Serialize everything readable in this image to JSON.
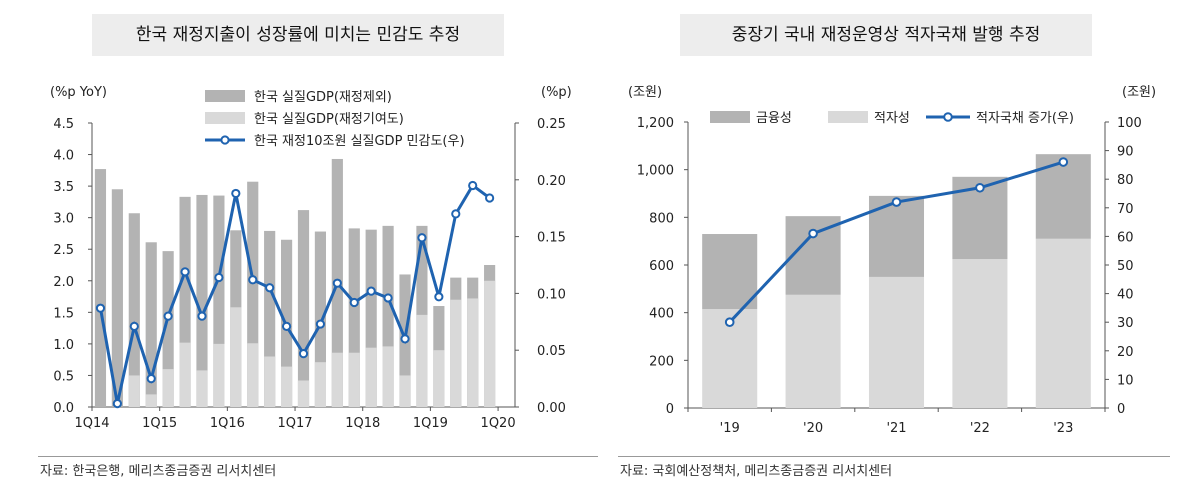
{
  "charts": [
    {
      "title": "한국 재정지출이 성장률에 미치는 민감도 추정",
      "source": "자료: 한국은행, 메리츠종금증권 리서치센터",
      "chart_data": {
        "type": "bar",
        "left_unit": "(%p YoY)",
        "right_unit": "(%p)",
        "ylim_left": [
          0,
          4.5
        ],
        "ylim_right": [
          0,
          0.25
        ],
        "left_ticks": [
          "0.0",
          "0.5",
          "1.0",
          "1.5",
          "2.0",
          "2.5",
          "3.0",
          "3.5",
          "4.0",
          "4.5"
        ],
        "right_ticks": [
          "0.00",
          "0.05",
          "0.10",
          "0.15",
          "0.20",
          "0.25"
        ],
        "x_tick_labels": [
          "1Q14",
          "1Q15",
          "1Q16",
          "1Q17",
          "1Q18",
          "1Q19",
          "1Q20"
        ],
        "categories": [
          "1Q14",
          "2Q14",
          "3Q14",
          "4Q14",
          "1Q15",
          "2Q15",
          "3Q15",
          "4Q15",
          "1Q16",
          "2Q16",
          "3Q16",
          "4Q16",
          "1Q17",
          "2Q17",
          "3Q17",
          "4Q17",
          "1Q18",
          "2Q18",
          "3Q18",
          "4Q18",
          "1Q19",
          "2Q19",
          "3Q19",
          "4Q19",
          "1Q20"
        ],
        "legend_position": "top-right",
        "series": [
          {
            "name": "한국 실질GDP(재정제외)",
            "kind": "bar",
            "axis": "left",
            "color": "#b3b3b3",
            "values": [
              3.77,
              3.45,
              3.07,
              2.61,
              2.47,
              3.33,
              3.36,
              3.35,
              2.8,
              3.57,
              2.79,
              2.65,
              3.12,
              2.78,
              3.93,
              2.83,
              2.81,
              2.87,
              2.1,
              2.87,
              1.6,
              2.05,
              2.05,
              2.25,
              null
            ]
          },
          {
            "name": "한국 실질GDP(재정기여도)",
            "kind": "bar",
            "axis": "left",
            "color": "#d9d9d9",
            "values": [
              null,
              null,
              0.5,
              0.2,
              0.6,
              1.02,
              0.58,
              1.0,
              1.58,
              1.01,
              0.8,
              0.64,
              0.42,
              0.71,
              0.86,
              0.86,
              0.94,
              0.96,
              0.5,
              1.46,
              0.9,
              1.7,
              1.72,
              2.0,
              null
            ]
          },
          {
            "name": "한국 재정10조원 실질GDP 민감도(우)",
            "kind": "line",
            "axis": "right",
            "color": "#1f63b0",
            "values": [
              0.087,
              0.003,
              0.071,
              0.025,
              0.08,
              0.119,
              0.08,
              0.114,
              0.188,
              0.112,
              0.105,
              0.071,
              0.047,
              0.073,
              0.109,
              0.092,
              0.102,
              0.096,
              0.06,
              0.149,
              0.097,
              0.17,
              0.195,
              0.184,
              null
            ]
          }
        ]
      }
    },
    {
      "title": "중장기 국내 재정운영상 적자국채 발행 추정",
      "source": "자료: 국회예산정책처, 메리츠종금증권 리서치센터",
      "chart_data": {
        "type": "bar",
        "left_unit": "(조원)",
        "right_unit": "(조원)",
        "ylim_left": [
          0,
          1200
        ],
        "ylim_right": [
          0,
          100
        ],
        "left_ticks": [
          "0",
          "200",
          "400",
          "600",
          "800",
          "1,000",
          "1,200"
        ],
        "right_ticks": [
          "0",
          "10",
          "20",
          "30",
          "40",
          "50",
          "60",
          "70",
          "80",
          "90",
          "100"
        ],
        "categories": [
          "'19",
          "'20",
          "'21",
          "'22",
          "'23"
        ],
        "legend_position": "top",
        "series": [
          {
            "name": "금융성",
            "kind": "bar",
            "axis": "left",
            "color": "#b3b3b3",
            "values": [
              315,
              330,
              340,
              345,
              355
            ]
          },
          {
            "name": "적자성",
            "kind": "bar",
            "axis": "left",
            "color": "#d9d9d9",
            "values": [
              415,
              475,
              550,
              625,
              710
            ]
          },
          {
            "name": "적자국채 증가(우)",
            "kind": "line",
            "axis": "right",
            "color": "#1f63b0",
            "values": [
              30.0,
              61.0,
              72.0,
              77.0,
              86.0
            ]
          }
        ]
      }
    }
  ]
}
